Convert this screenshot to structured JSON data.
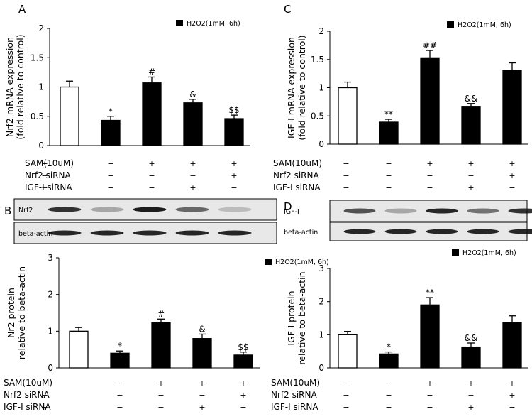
{
  "legend_label": "H2O2(1mM, 6h)",
  "colors": {
    "control_bar": "#ffffff",
    "treated_bar": "#000000",
    "axis": "#000000",
    "blot_bg": "#e8e8e8",
    "band": "#111111"
  },
  "condition_rows": [
    {
      "label": "SAM(10uM)",
      "values": [
        "−",
        "−",
        "+",
        "+",
        "+"
      ]
    },
    {
      "label": "Nrf2 siRNA",
      "values": [
        "−",
        "−",
        "−",
        "−",
        "+"
      ]
    },
    {
      "label": "IGF-I siRNA",
      "values": [
        "−",
        "−",
        "−",
        "+",
        "−"
      ]
    }
  ],
  "blots": {
    "B": {
      "target_label": "Nrf2",
      "loading_label": "beta-actin",
      "target_band_intensity": [
        0.85,
        0.3,
        0.95,
        0.6,
        0.2
      ],
      "loading_band_intensity": [
        0.9,
        0.9,
        0.9,
        0.9,
        0.9
      ]
    },
    "D": {
      "target_label": "IGF-I",
      "loading_label": "beta-actin",
      "target_band_intensity": [
        0.7,
        0.3,
        0.9,
        0.55,
        0.85
      ],
      "loading_band_intensity": [
        0.9,
        0.9,
        0.9,
        0.9,
        0.9
      ]
    }
  },
  "chart_data": [
    {
      "panel": "A",
      "type": "bar",
      "ylabel": [
        "Nrf2 mRNA expression",
        "(fold relative to control)"
      ],
      "ylim": [
        0,
        2
      ],
      "yticks": [
        "0",
        "0.5",
        "1",
        "1.5",
        "2"
      ],
      "ytick_values": [
        0,
        0.5,
        1,
        1.5,
        2
      ],
      "values": [
        1.0,
        0.43,
        1.07,
        0.73,
        0.46
      ],
      "errors": [
        0.1,
        0.07,
        0.1,
        0.06,
        0.06
      ],
      "significance": [
        "",
        "*",
        "#",
        "&",
        "$$"
      ],
      "legend_position": "top-right"
    },
    {
      "panel": "C",
      "type": "bar",
      "ylabel": [
        "IGF-I mRNA expression",
        "(fold relative to control)"
      ],
      "ylim": [
        0,
        2
      ],
      "yticks": [
        "0",
        "0.5",
        "1",
        "1.5",
        "2"
      ],
      "ytick_values": [
        0,
        0.5,
        1,
        1.5,
        2
      ],
      "values": [
        1.0,
        0.39,
        1.53,
        0.67,
        1.31
      ],
      "errors": [
        0.1,
        0.05,
        0.13,
        0.05,
        0.13
      ],
      "significance": [
        "",
        "**",
        "##",
        "&&",
        ""
      ],
      "legend_position": "top-right"
    },
    {
      "panel": "B",
      "type": "bar",
      "ylabel": [
        "Nr2 protein",
        "relative to beta-actin"
      ],
      "ylim": [
        0,
        3
      ],
      "yticks": [
        "0",
        "1",
        "2",
        "3"
      ],
      "ytick_values": [
        0,
        1,
        2,
        3
      ],
      "values": [
        1.0,
        0.4,
        1.23,
        0.8,
        0.35
      ],
      "errors": [
        0.1,
        0.06,
        0.1,
        0.12,
        0.08
      ],
      "significance": [
        "",
        "*",
        "#",
        "&",
        "$$"
      ],
      "legend_position": "top-right"
    },
    {
      "panel": "D",
      "type": "bar",
      "ylabel": [
        "IGF-I protein",
        "relative to beta-actin"
      ],
      "ylim": [
        0,
        3
      ],
      "yticks": [
        "0",
        "1",
        "2",
        "3"
      ],
      "ytick_values": [
        0,
        1,
        2,
        3
      ],
      "values": [
        1.0,
        0.42,
        1.9,
        0.63,
        1.37
      ],
      "errors": [
        0.1,
        0.06,
        0.22,
        0.12,
        0.2
      ],
      "significance": [
        "",
        "*",
        "**",
        "&&",
        ""
      ],
      "legend_position": "top-right"
    }
  ]
}
